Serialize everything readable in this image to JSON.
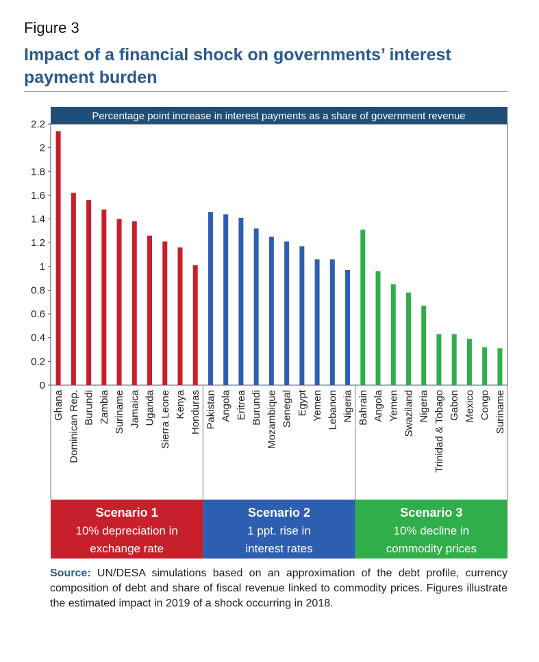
{
  "figure_label": "Figure 3",
  "title": "Impact of a financial shock on governments’ interest payment burden",
  "banner": "Percentage point increase in interest payments as a share of government revenue",
  "source_label": "Source:",
  "source_text": "UN/DESA simulations based on an approximation of the debt profile, currency composition of debt and share of fiscal revenue linked to commodity prices. Figures illustrate the estimated impact in 2019 of a shock occurring in 2018.",
  "colors": {
    "scenario1": "#c8202a",
    "scenario2": "#2d5fb0",
    "scenario3": "#2fae4a",
    "banner": "#1f4e79",
    "title": "#2b5a8c"
  },
  "chart_data": {
    "type": "bar",
    "ylim": [
      0,
      2.2
    ],
    "yticks": [
      "0",
      "0.2",
      "0.4",
      "0.6",
      "0.8",
      "1",
      "1.2",
      "1.4",
      "1.6",
      "1.8",
      "2",
      "2.2"
    ],
    "groups": [
      {
        "name": "Scenario 1",
        "subtitle": [
          "10% depreciation in",
          "exchange rate"
        ],
        "color": "#c8202a",
        "categories": [
          "Ghana",
          "Dominican Rep.",
          "Burundi",
          "Zambia",
          "Suriname",
          "Jamaica",
          "Uganda",
          "Sierra Leone",
          "Kenya",
          "Honduras"
        ],
        "values": [
          2.14,
          1.62,
          1.56,
          1.48,
          1.4,
          1.38,
          1.26,
          1.21,
          1.16,
          1.01
        ]
      },
      {
        "name": "Scenario 2",
        "subtitle": [
          "1 ppt. rise in",
          "interest rates"
        ],
        "color": "#2d5fb0",
        "categories": [
          "Pakistan",
          "Angola",
          "Eritrea",
          "Burundi",
          "Mozambique",
          "Senegal",
          "Egypt",
          "Yemen",
          "Lebanon",
          "Nigeria"
        ],
        "values": [
          1.46,
          1.44,
          1.41,
          1.32,
          1.25,
          1.21,
          1.17,
          1.06,
          1.06,
          0.97
        ]
      },
      {
        "name": "Scenario 3",
        "subtitle": [
          "10% decline in",
          "commodity prices"
        ],
        "color": "#2fae4a",
        "categories": [
          "Bahrain",
          "Angola",
          "Yemen",
          "Swaziland",
          "Nigeria",
          "Trinidad & Tobago",
          "Gabon",
          "Mexico",
          "Congo",
          "Suriname"
        ],
        "values": [
          1.31,
          0.96,
          0.85,
          0.78,
          0.67,
          0.43,
          0.43,
          0.39,
          0.32,
          0.31
        ]
      }
    ]
  }
}
